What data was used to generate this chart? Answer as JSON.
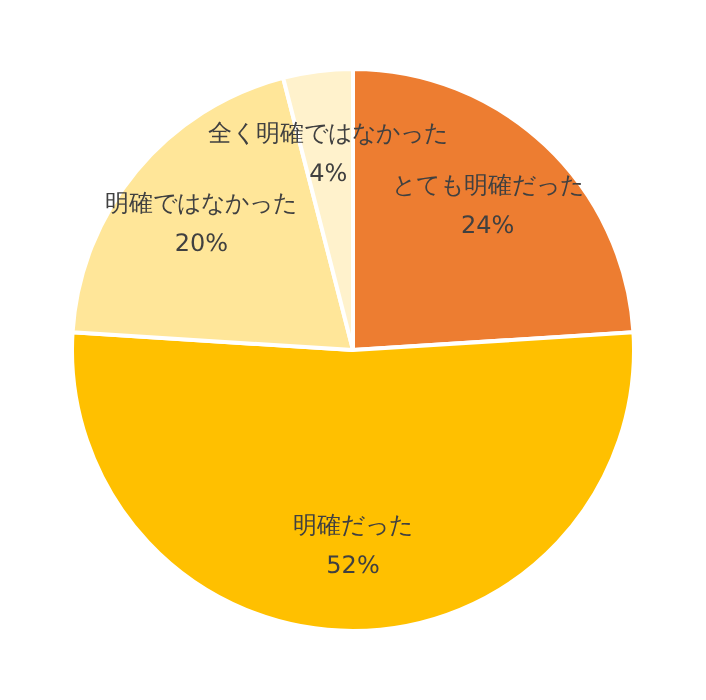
{
  "chart_data": {
    "type": "pie",
    "categories": [
      "とても明確だった",
      "明確だった",
      "明確ではなかった",
      "全く明確ではなかった"
    ],
    "values": [
      24,
      52,
      20,
      4
    ],
    "colors": [
      "#ed7d31",
      "#ffc000",
      "#ffe699",
      "#fff2cc"
    ],
    "value_labels": [
      "24%",
      "52%",
      "20%",
      "4%"
    ],
    "legend": false
  }
}
